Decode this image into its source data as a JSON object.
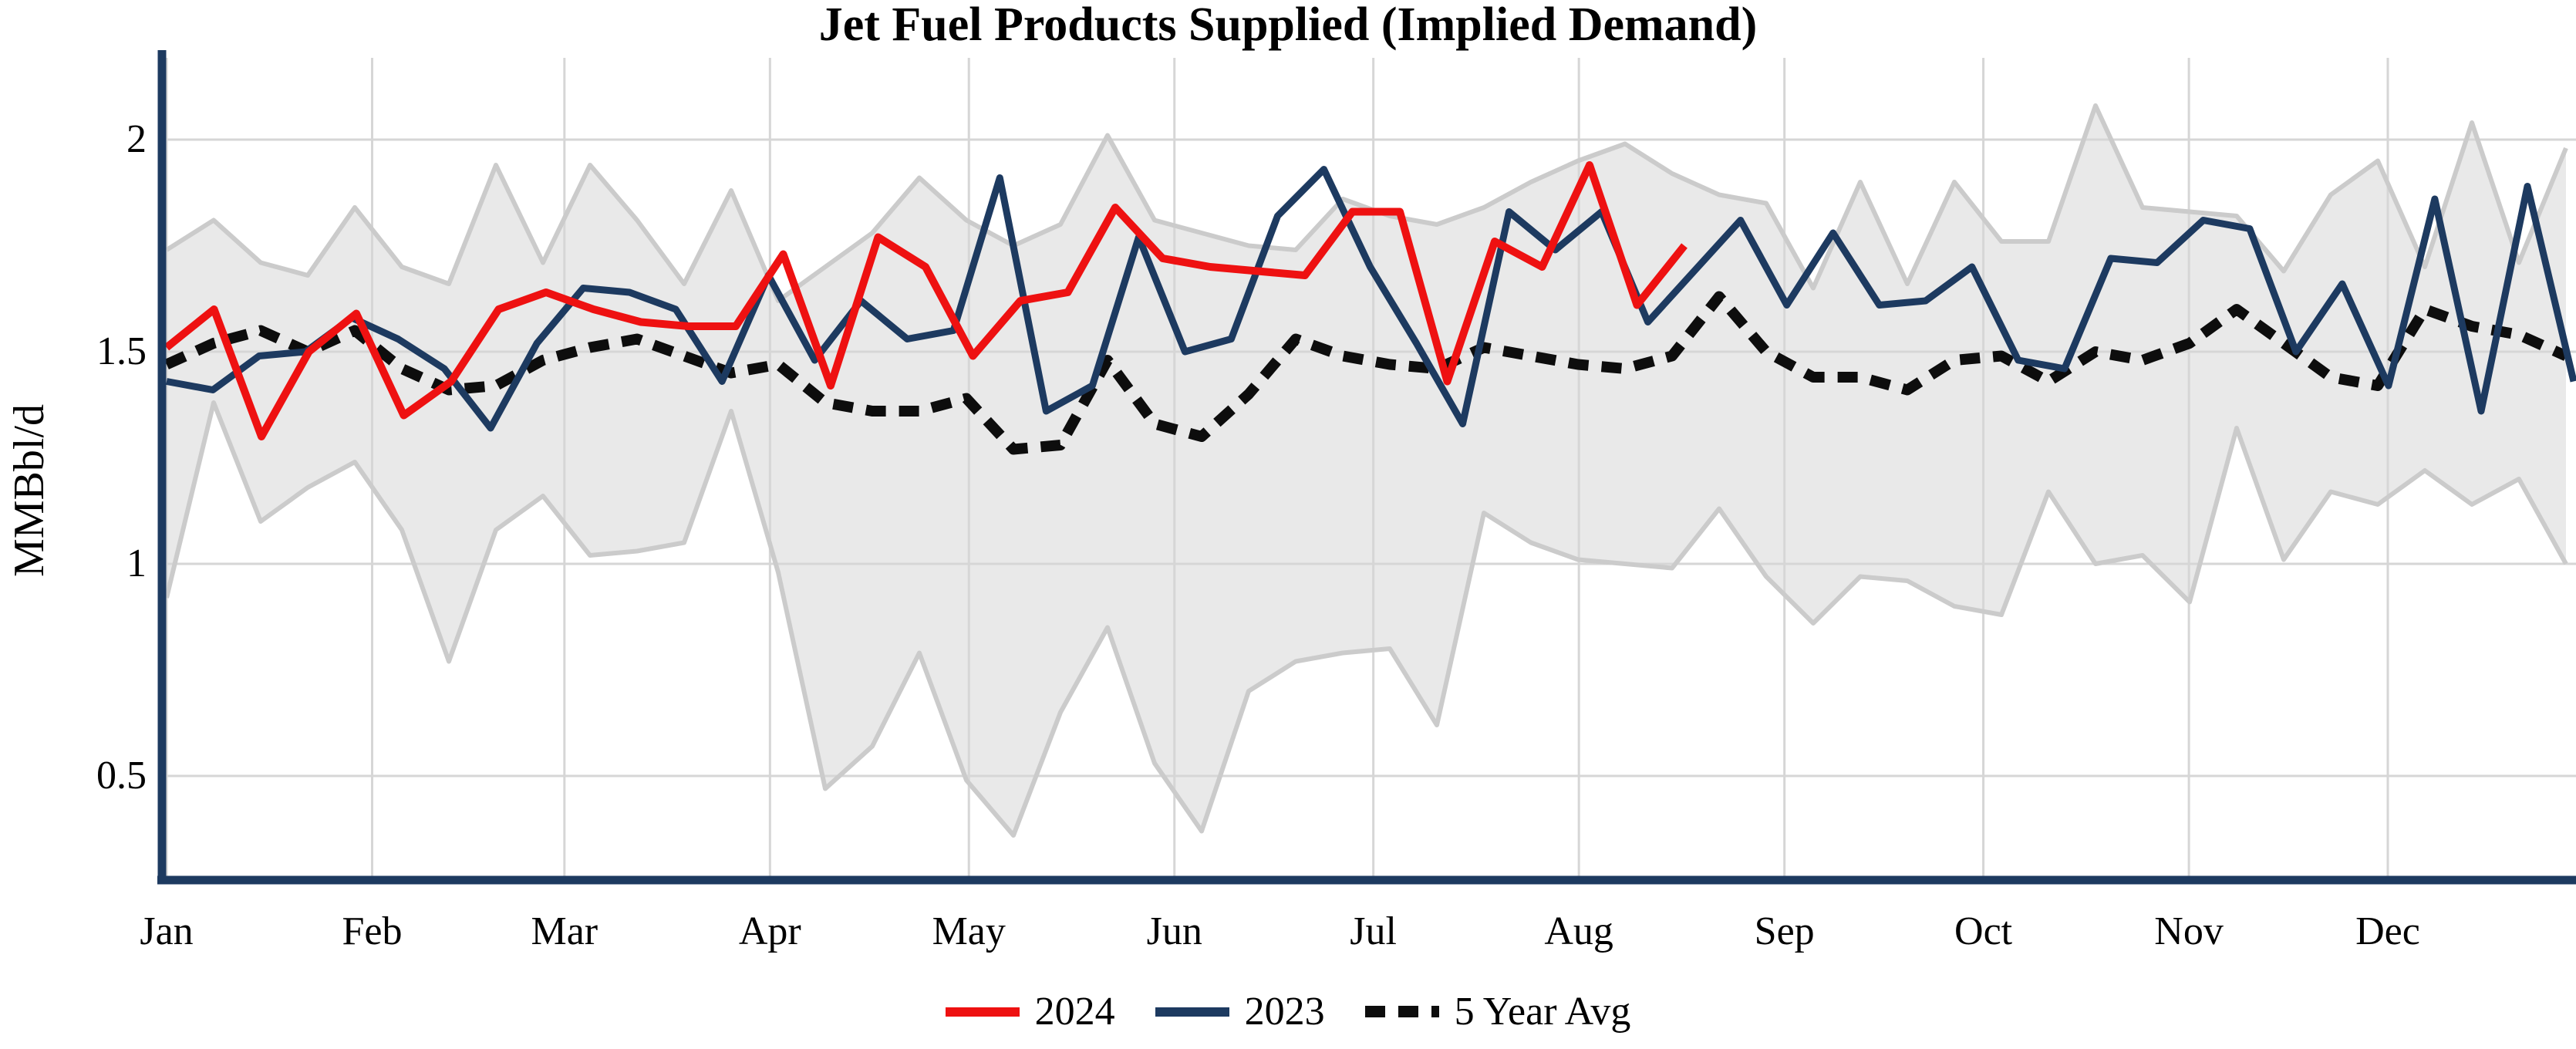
{
  "title": "Jet Fuel Products Supplied (Implied Demand)",
  "y_axis": {
    "label": "MMBbl/d",
    "ticks": [
      {
        "value": 2,
        "label": "2"
      },
      {
        "value": 1.5,
        "label": "1.5"
      },
      {
        "value": 1,
        "label": "1"
      },
      {
        "value": 0.5,
        "label": "0.5"
      }
    ]
  },
  "x_axis": {
    "months": [
      "Jan",
      "Feb",
      "Mar",
      "Apr",
      "May",
      "Jun",
      "Jul",
      "Aug",
      "Sep",
      "Oct",
      "Nov",
      "Dec"
    ]
  },
  "legend": [
    {
      "label": "2024",
      "style": "solid",
      "color": "#ee1111"
    },
    {
      "label": "2023",
      "style": "solid",
      "color": "#1d3a60"
    },
    {
      "label": "5 Year Avg",
      "style": "dashed",
      "color": "#0d0d0d"
    }
  ],
  "colors": {
    "red_2024": "#ee1111",
    "navy_2023": "#1d3a60",
    "avg_dotted": "#0d0d0d",
    "band_fill": "#e9e9e9",
    "band_edge": "#cbcbcb",
    "gridline": "#d6d6d6",
    "axis_spine": "#1d3a60",
    "text": "#000000"
  },
  "chart_data": {
    "type": "line",
    "title": "Jet Fuel Products Supplied (Implied Demand)",
    "xlabel": "",
    "ylabel": "MMBbl/d",
    "ylim": [
      0.26,
      2.19
    ],
    "x_tick_labels": [
      "Jan",
      "Feb",
      "Mar",
      "Apr",
      "May",
      "Jun",
      "Jul",
      "Aug",
      "Sep",
      "Oct",
      "Nov",
      "Dec"
    ],
    "y_ticks": [
      0.5,
      1,
      1.5,
      2
    ],
    "grid": true,
    "legend_position": "bottom-center",
    "frequency": "weekly",
    "series": [
      {
        "name": "2024",
        "color": "#ee1111",
        "style": "solid",
        "values": [
          1.51,
          1.6,
          1.3,
          1.5,
          1.59,
          1.35,
          1.43,
          1.6,
          1.64,
          1.6,
          1.57,
          1.56,
          1.56,
          1.73,
          1.42,
          1.77,
          1.7,
          1.49,
          1.62,
          1.64,
          1.84,
          1.72,
          1.7,
          1.69,
          1.68,
          1.83,
          1.83,
          1.43,
          1.76,
          1.7,
          1.94,
          1.61,
          1.75
        ]
      },
      {
        "name": "2023",
        "color": "#1d3a60",
        "style": "solid",
        "values": [
          1.43,
          1.41,
          1.49,
          1.5,
          1.58,
          1.53,
          1.46,
          1.32,
          1.52,
          1.65,
          1.64,
          1.6,
          1.43,
          1.68,
          1.48,
          1.62,
          1.53,
          1.55,
          1.91,
          1.36,
          1.42,
          1.77,
          1.5,
          1.53,
          1.82,
          1.93,
          1.7,
          1.52,
          1.33,
          1.83,
          1.74,
          1.83,
          1.57,
          1.69,
          1.81,
          1.61,
          1.78,
          1.61,
          1.62,
          1.7,
          1.48,
          1.46,
          1.72,
          1.71,
          1.81,
          1.79,
          1.5,
          1.66,
          1.42,
          1.86,
          1.36,
          1.89,
          1.43
        ]
      },
      {
        "name": "5 Year Avg",
        "color": "#0d0d0d",
        "style": "dashed",
        "values": [
          1.47,
          1.52,
          1.55,
          1.5,
          1.55,
          1.46,
          1.41,
          1.42,
          1.48,
          1.51,
          1.53,
          1.49,
          1.45,
          1.47,
          1.38,
          1.36,
          1.36,
          1.39,
          1.27,
          1.28,
          1.48,
          1.33,
          1.3,
          1.4,
          1.53,
          1.49,
          1.47,
          1.46,
          1.51,
          1.49,
          1.47,
          1.46,
          1.49,
          1.63,
          1.5,
          1.44,
          1.44,
          1.41,
          1.48,
          1.49,
          1.43,
          1.5,
          1.48,
          1.52,
          1.6,
          1.52,
          1.44,
          1.42,
          1.6,
          1.56,
          1.54,
          1.49
        ]
      }
    ],
    "band": {
      "name": "5 year range",
      "fill": "#e9e9e9",
      "edge": "#cbcbcb",
      "upper": [
        1.74,
        1.81,
        1.71,
        1.68,
        1.84,
        1.7,
        1.66,
        1.94,
        1.71,
        1.94,
        1.81,
        1.66,
        1.88,
        1.62,
        1.7,
        1.78,
        1.91,
        1.81,
        1.75,
        1.8,
        2.01,
        1.81,
        1.78,
        1.75,
        1.74,
        1.86,
        1.82,
        1.8,
        1.84,
        1.9,
        1.95,
        1.99,
        1.92,
        1.87,
        1.85,
        1.65,
        1.9,
        1.66,
        1.9,
        1.76,
        1.76,
        2.08,
        1.84,
        1.83,
        1.82,
        1.69,
        1.87,
        1.95,
        1.7,
        2.04,
        1.71,
        1.98
      ],
      "lower": [
        0.92,
        1.38,
        1.1,
        1.18,
        1.24,
        1.08,
        0.77,
        1.08,
        1.16,
        1.02,
        1.03,
        1.05,
        1.36,
        0.98,
        0.47,
        0.57,
        0.79,
        0.49,
        0.36,
        0.65,
        0.85,
        0.53,
        0.37,
        0.7,
        0.77,
        0.79,
        0.8,
        0.62,
        1.12,
        1.05,
        1.01,
        1.0,
        0.99,
        1.13,
        0.97,
        0.86,
        0.97,
        0.96,
        0.9,
        0.88,
        1.17,
        1.0,
        1.02,
        0.91,
        1.32,
        1.01,
        1.17,
        1.14,
        1.22,
        1.14,
        1.2,
        1.0
      ]
    },
    "month_start_days": [
      0,
      31,
      60,
      91,
      121,
      152,
      182,
      213,
      244,
      274,
      305,
      335
    ]
  }
}
